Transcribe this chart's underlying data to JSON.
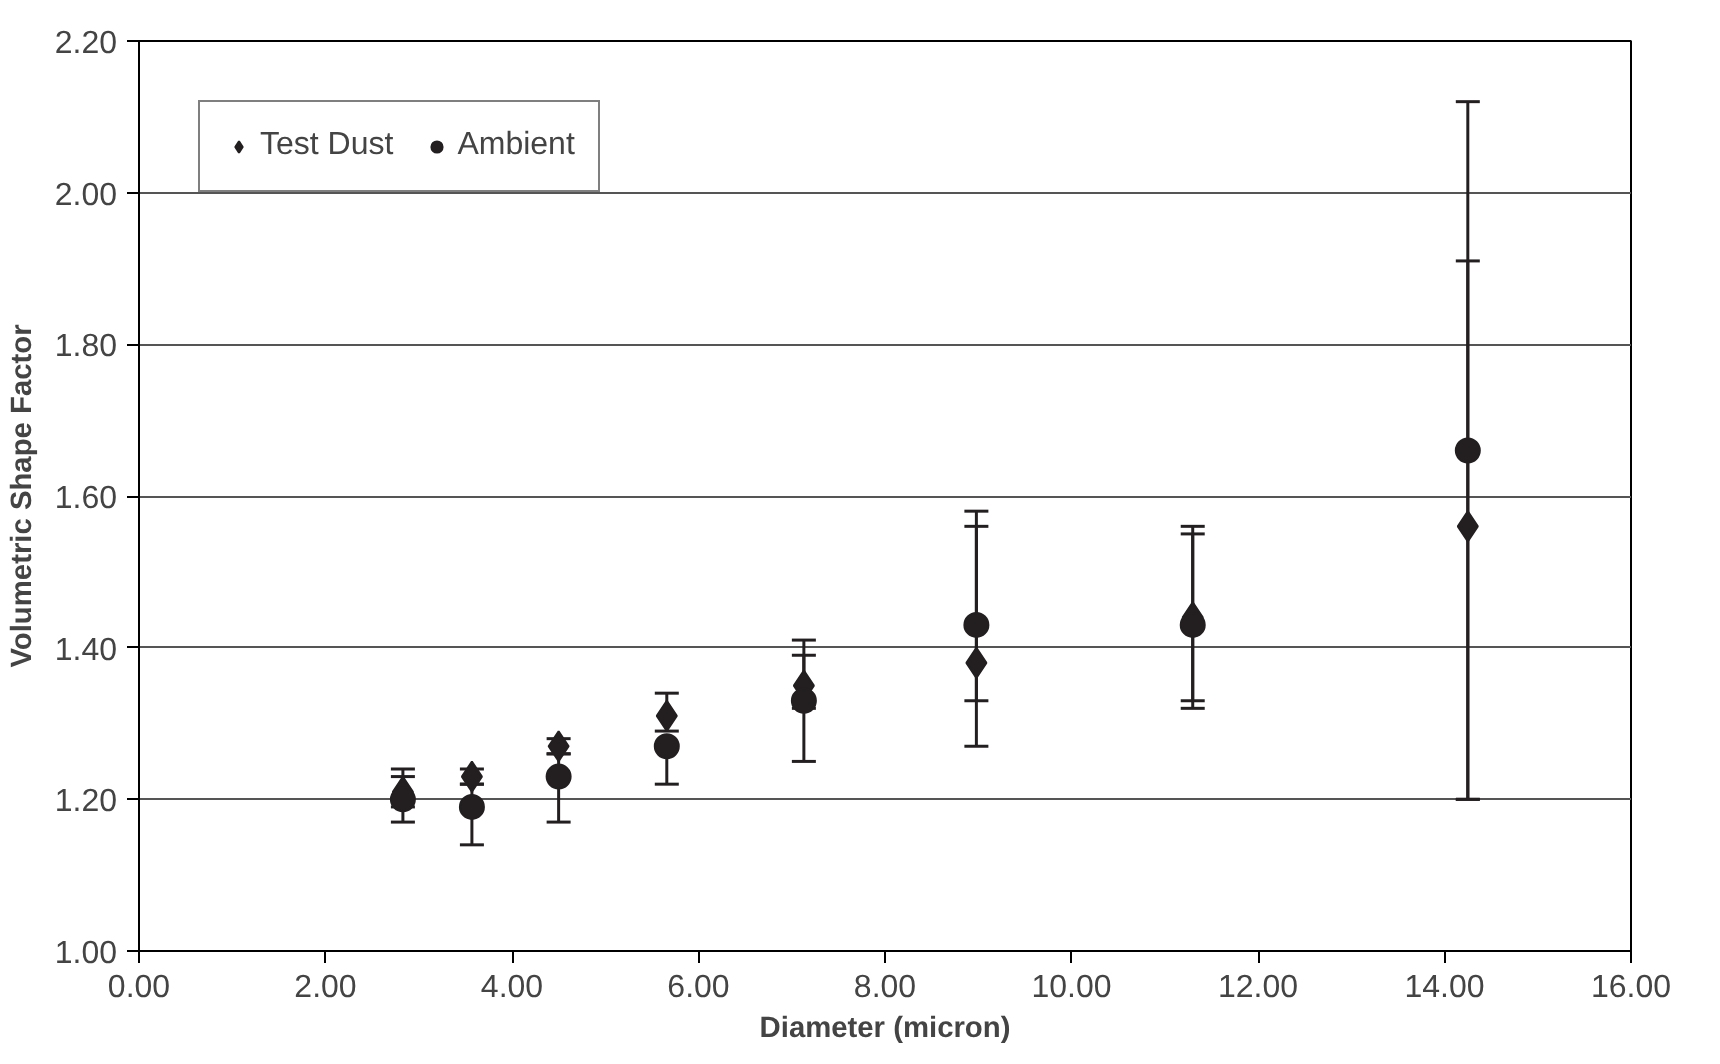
{
  "chart_data": {
    "type": "scatter",
    "xlabel": "Diameter (micron)",
    "ylabel": "Volumetric Shape Factor",
    "xlim": [
      0,
      16
    ],
    "xticks": [
      {
        "value": 0,
        "label": "0.00"
      },
      {
        "value": 2,
        "label": "2.00"
      },
      {
        "value": 4,
        "label": "4.00"
      },
      {
        "value": 6,
        "label": "6.00"
      },
      {
        "value": 8,
        "label": "8.00"
      },
      {
        "value": 10,
        "label": "10.00"
      },
      {
        "value": 12,
        "label": "12.00"
      },
      {
        "value": 14,
        "label": "14.00"
      },
      {
        "value": 16,
        "label": "16.00"
      }
    ],
    "ylim": [
      1,
      2.2
    ],
    "yticks": [
      {
        "value": 1,
        "label": "1.00"
      },
      {
        "value": 1.2,
        "label": "1.20"
      },
      {
        "value": 1.4,
        "label": "1.40"
      },
      {
        "value": 1.6,
        "label": "1.60"
      },
      {
        "value": 1.8,
        "label": "1.80"
      },
      {
        "value": 2,
        "label": "2.00"
      },
      {
        "value": 2.2,
        "label": "2.20"
      }
    ],
    "grid": "y",
    "legend": "top left",
    "series": [
      {
        "name": "Test Dust",
        "color": "#231f20",
        "marker": "diamond",
        "x": [
          2.83,
          3.57,
          4.5,
          5.66,
          7.13,
          8.98,
          11.3,
          14.25
        ],
        "values": [
          1.21,
          1.23,
          1.27,
          1.31,
          1.35,
          1.38,
          1.44,
          1.56
        ],
        "errors": [
          [
            1.19,
            1.24
          ],
          [
            1.22,
            1.24
          ],
          [
            1.26,
            1.28
          ],
          [
            1.29,
            1.34
          ],
          [
            1.32,
            1.39
          ],
          [
            1.33,
            1.56
          ],
          [
            1.33,
            1.55
          ],
          [
            1.2,
            1.91
          ]
        ]
      },
      {
        "name": "Ambient",
        "color": "#231f20",
        "marker": "circle",
        "x": [
          2.83,
          3.57,
          4.5,
          5.66,
          7.13,
          8.98,
          11.3,
          14.25
        ],
        "values": [
          1.2,
          1.19,
          1.23,
          1.27,
          1.33,
          1.43,
          1.43,
          1.66
        ],
        "errors": [
          [
            1.17,
            1.23
          ],
          [
            1.14,
            1.22
          ],
          [
            1.17,
            1.26
          ],
          [
            1.22,
            1.27
          ],
          [
            1.25,
            1.41
          ],
          [
            1.27,
            1.58
          ],
          [
            1.32,
            1.56
          ],
          [
            1.2,
            2.12
          ]
        ]
      }
    ]
  }
}
